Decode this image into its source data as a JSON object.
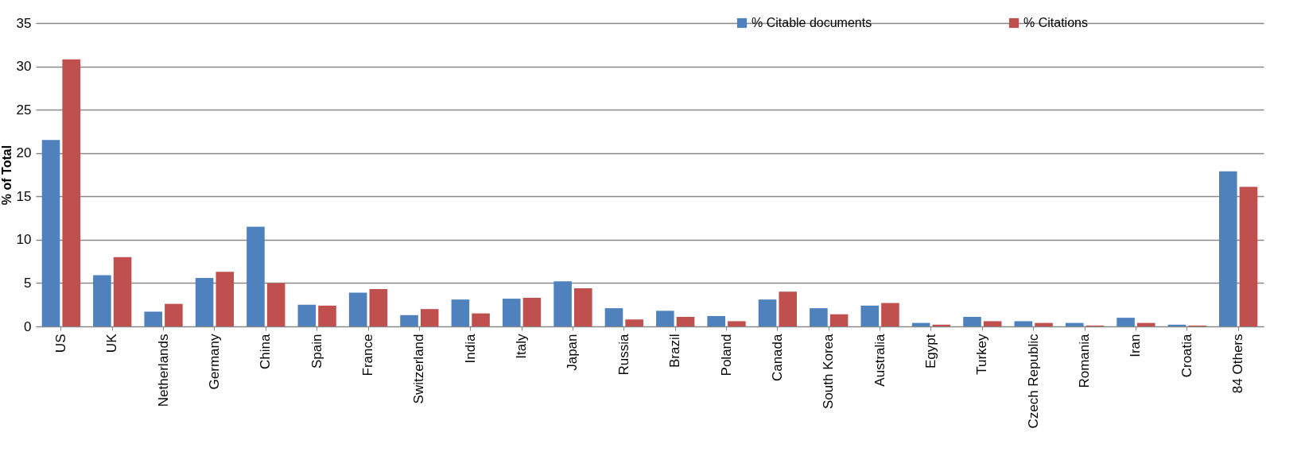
{
  "chart_data": {
    "type": "bar",
    "ylabel": "% of Total",
    "categories": [
      "US",
      "UK",
      "Netherlands",
      "Germany",
      "China",
      "Spain",
      "France",
      "Switzerland",
      "India",
      "Italy",
      "Japan",
      "Russia",
      "Brazil",
      "Poland",
      "Canada",
      "South Korea",
      "Australia",
      "Egypt",
      "Turkey",
      "Czech Republic",
      "Romania",
      "Iran",
      "Croatia",
      "84 Others"
    ],
    "series": [
      {
        "name": "% Citable documents",
        "color": "#4f81bd",
        "values": [
          21.5,
          5.9,
          1.7,
          5.6,
          11.5,
          2.5,
          3.9,
          1.3,
          3.1,
          3.2,
          5.2,
          2.1,
          1.8,
          1.2,
          3.1,
          2.1,
          2.4,
          0.4,
          1.1,
          0.6,
          0.4,
          1.0,
          0.2,
          17.9
        ]
      },
      {
        "name": "% Citations",
        "color": "#c0504d",
        "values": [
          30.8,
          8.0,
          2.6,
          6.3,
          5.0,
          2.4,
          4.3,
          2.0,
          1.5,
          3.3,
          4.4,
          0.8,
          1.1,
          0.6,
          4.0,
          1.4,
          2.7,
          0.2,
          0.6,
          0.4,
          0.1,
          0.4,
          0.1,
          16.1
        ]
      }
    ],
    "ylim": [
      0,
      35
    ],
    "yticks": [
      0,
      5,
      10,
      15,
      20,
      25,
      30,
      35
    ],
    "grid": "y",
    "legend": "top right"
  }
}
